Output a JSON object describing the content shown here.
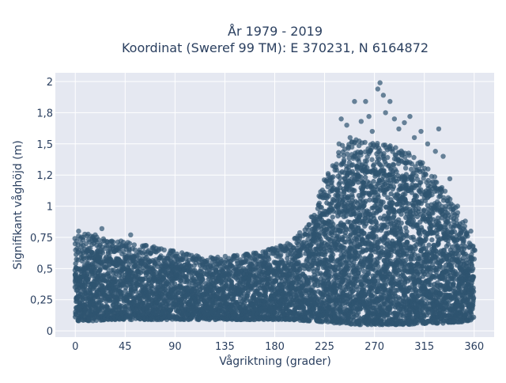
{
  "chart_data": {
    "type": "scatter",
    "title_line1": "År 1979 - 2019",
    "title_line2": "Koordinat (Sweref 99 TM): E 370231, N 6164872",
    "xlabel": "Vågriktning (grader)",
    "ylabel": "Signifikant våghöjd (m)",
    "xlim": [
      -18,
      378
    ],
    "ylim": [
      -0.05,
      2.07
    ],
    "xticks": [
      {
        "value": 0,
        "label": "0"
      },
      {
        "value": 45,
        "label": "45"
      },
      {
        "value": 90,
        "label": "90"
      },
      {
        "value": 135,
        "label": "135"
      },
      {
        "value": 180,
        "label": "180"
      },
      {
        "value": 225,
        "label": "225"
      },
      {
        "value": 270,
        "label": "270"
      },
      {
        "value": 315,
        "label": "315"
      },
      {
        "value": 360,
        "label": "360"
      }
    ],
    "yticks": [
      {
        "value": 0,
        "label": "0"
      },
      {
        "value": 0.25,
        "label": "0,25"
      },
      {
        "value": 0.5,
        "label": "0,5"
      },
      {
        "value": 0.75,
        "label": "0,75"
      },
      {
        "value": 1,
        "label": "1"
      },
      {
        "value": 1.25,
        "label": "1,2"
      },
      {
        "value": 1.5,
        "label": "1,5"
      },
      {
        "value": 1.75,
        "label": "1,8"
      },
      {
        "value": 2,
        "label": "2"
      }
    ],
    "grid": true,
    "marker_color": "#2f5470",
    "background_color": "#e5e8f1",
    "envelope": {
      "description_values": "approximate upper extent of dense point cloud (Hs in m) by direction (degrees)",
      "x": [
        0,
        15,
        30,
        45,
        60,
        75,
        90,
        105,
        120,
        135,
        150,
        165,
        180,
        195,
        210,
        225,
        240,
        255,
        270,
        285,
        300,
        315,
        330,
        345,
        360
      ],
      "y_max": [
        0.63,
        0.66,
        0.6,
        0.6,
        0.58,
        0.55,
        0.53,
        0.5,
        0.48,
        0.49,
        0.5,
        0.53,
        0.56,
        0.6,
        0.72,
        1.05,
        1.28,
        1.33,
        1.3,
        1.3,
        1.25,
        1.15,
        1.0,
        0.82,
        0.55
      ],
      "y_min": [
        0.08,
        0.08,
        0.09,
        0.09,
        0.09,
        0.09,
        0.09,
        0.09,
        0.09,
        0.09,
        0.09,
        0.09,
        0.09,
        0.09,
        0.08,
        0.07,
        0.06,
        0.05,
        0.05,
        0.05,
        0.05,
        0.06,
        0.06,
        0.07,
        0.08
      ]
    },
    "outliers": [
      {
        "x": 3,
        "y": 0.8
      },
      {
        "x": 7,
        "y": 0.75
      },
      {
        "x": 18,
        "y": 0.77
      },
      {
        "x": 24,
        "y": 0.82
      },
      {
        "x": 33,
        "y": 0.72
      },
      {
        "x": 50,
        "y": 0.77
      },
      {
        "x": 70,
        "y": 0.66
      },
      {
        "x": 85,
        "y": 0.62
      },
      {
        "x": 100,
        "y": 0.58
      },
      {
        "x": 115,
        "y": 0.55
      },
      {
        "x": 140,
        "y": 0.53
      },
      {
        "x": 160,
        "y": 0.56
      },
      {
        "x": 185,
        "y": 0.6
      },
      {
        "x": 200,
        "y": 0.74
      },
      {
        "x": 215,
        "y": 0.88
      },
      {
        "x": 228,
        "y": 1.18
      },
      {
        "x": 238,
        "y": 1.5
      },
      {
        "x": 240,
        "y": 1.7
      },
      {
        "x": 245,
        "y": 1.65
      },
      {
        "x": 248,
        "y": 1.55
      },
      {
        "x": 252,
        "y": 1.84
      },
      {
        "x": 258,
        "y": 1.68
      },
      {
        "x": 262,
        "y": 1.84
      },
      {
        "x": 265,
        "y": 1.72
      },
      {
        "x": 268,
        "y": 1.6
      },
      {
        "x": 273,
        "y": 1.94
      },
      {
        "x": 275,
        "y": 1.99
      },
      {
        "x": 278,
        "y": 1.89
      },
      {
        "x": 280,
        "y": 1.75
      },
      {
        "x": 284,
        "y": 1.84
      },
      {
        "x": 288,
        "y": 1.7
      },
      {
        "x": 292,
        "y": 1.62
      },
      {
        "x": 297,
        "y": 1.67
      },
      {
        "x": 302,
        "y": 1.72
      },
      {
        "x": 306,
        "y": 1.55
      },
      {
        "x": 312,
        "y": 1.6
      },
      {
        "x": 318,
        "y": 1.5
      },
      {
        "x": 325,
        "y": 1.44
      },
      {
        "x": 328,
        "y": 1.62
      },
      {
        "x": 332,
        "y": 1.4
      },
      {
        "x": 338,
        "y": 1.22
      },
      {
        "x": 345,
        "y": 1.0
      },
      {
        "x": 352,
        "y": 0.88
      },
      {
        "x": 357,
        "y": 0.8
      },
      {
        "x": 359,
        "y": 0.68
      }
    ]
  }
}
